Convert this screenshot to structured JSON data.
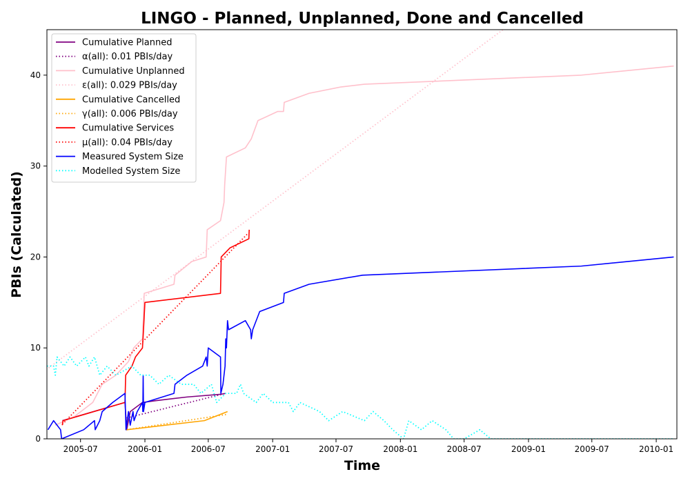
{
  "chart_data": {
    "type": "line",
    "title": "LINGO - Planned, Unplanned, Done  and Cancelled",
    "xlabel": "Time",
    "ylabel": "PBIs (Calculated)",
    "xlim": [
      "2005-03-27",
      "2010-03-01"
    ],
    "ylim": [
      0,
      45
    ],
    "x_ticks": [
      "2005-07",
      "2006-01",
      "2006-07",
      "2007-01",
      "2007-07",
      "2008-01",
      "2008-07",
      "2009-01",
      "2009-07",
      "2010-01"
    ],
    "y_ticks": [
      0,
      10,
      20,
      30,
      40
    ],
    "grid": false,
    "legend_position": "top-left",
    "series": [
      {
        "name": "Cumulative Planned",
        "color": "#800080",
        "style": "solid",
        "points": [
          [
            "2005-05-10",
            2
          ],
          [
            "2005-11-05",
            4
          ],
          [
            "2005-11-10",
            1
          ],
          [
            "2005-11-20",
            3
          ],
          [
            "2005-12-25",
            4
          ],
          [
            "2006-02-01",
            4.2
          ],
          [
            "2006-05-01",
            4.6
          ],
          [
            "2006-08-05",
            4.9
          ],
          [
            "2006-08-20",
            5
          ]
        ]
      },
      {
        "name": "α(all): 0.01 PBIs/day",
        "color": "#800080",
        "style": "dotted",
        "points": [
          [
            "2005-11-10",
            2.3
          ],
          [
            "2006-08-20",
            5
          ]
        ]
      },
      {
        "name": "Cumulative Unplanned",
        "color": "#ffc0cb",
        "style": "solid",
        "points": [
          [
            "2005-04-20",
            1.5
          ],
          [
            "2005-06-15",
            2.5
          ],
          [
            "2005-08-05",
            4
          ],
          [
            "2005-09-01",
            6
          ],
          [
            "2005-10-10",
            7
          ],
          [
            "2005-11-15",
            8.5
          ],
          [
            "2005-11-30",
            10
          ],
          [
            "2005-12-25",
            11
          ],
          [
            "2005-12-30",
            16
          ],
          [
            "2006-03-25",
            17
          ],
          [
            "2006-03-28",
            18
          ],
          [
            "2006-05-15",
            19.5
          ],
          [
            "2006-06-25",
            20
          ],
          [
            "2006-06-28",
            23
          ],
          [
            "2006-08-05",
            24
          ],
          [
            "2006-08-15",
            26
          ],
          [
            "2006-08-17",
            28
          ],
          [
            "2006-08-22",
            31
          ],
          [
            "2006-10-15",
            32
          ],
          [
            "2006-11-01",
            33
          ],
          [
            "2006-11-20",
            35
          ],
          [
            "2007-01-15",
            36
          ],
          [
            "2007-02-01",
            36
          ],
          [
            "2007-02-03",
            37
          ],
          [
            "2007-04-15",
            38
          ],
          [
            "2007-07-15",
            38.7
          ],
          [
            "2007-09-20",
            39
          ],
          [
            "2009-06-01",
            40
          ],
          [
            "2010-02-20",
            41
          ]
        ]
      },
      {
        "name": "ε(all): 0.029 PBIs/day",
        "color": "#ffc0cb",
        "style": "dotted",
        "points": [
          [
            "2005-04-01",
            7.8
          ],
          [
            "2008-10-20",
            45
          ]
        ]
      },
      {
        "name": "Cumulative Cancelled",
        "color": "#ffa500",
        "style": "solid",
        "points": [
          [
            "2005-11-10",
            1
          ],
          [
            "2006-06-20",
            2
          ],
          [
            "2006-08-25",
            3
          ]
        ]
      },
      {
        "name": "γ(all): 0.006 PBIs/day",
        "color": "#ffa500",
        "style": "dotted",
        "points": [
          [
            "2005-11-10",
            1
          ],
          [
            "2006-08-25",
            2.7
          ]
        ]
      },
      {
        "name": "Cumulative Services",
        "color": "#ff0000",
        "style": "solid",
        "points": [
          [
            "2005-05-10",
            1.5
          ],
          [
            "2005-05-12",
            2
          ],
          [
            "2005-11-05",
            4
          ],
          [
            "2005-11-07",
            7
          ],
          [
            "2005-11-25",
            8
          ],
          [
            "2005-12-05",
            9
          ],
          [
            "2005-12-25",
            10
          ],
          [
            "2005-12-28",
            12
          ],
          [
            "2006-01-01",
            15
          ],
          [
            "2006-08-05",
            16
          ],
          [
            "2006-08-07",
            20
          ],
          [
            "2006-09-01",
            21
          ],
          [
            "2006-10-25",
            22
          ],
          [
            "2006-10-26",
            23
          ]
        ]
      },
      {
        "name": "μ(all): 0.04 PBIs/day",
        "color": "#ff0000",
        "style": "dotted",
        "points": [
          [
            "2005-05-10",
            1.6
          ],
          [
            "2006-10-20",
            22.5
          ]
        ]
      },
      {
        "name": "Measured System Size",
        "color": "#0000ff",
        "style": "solid",
        "points": [
          [
            "2005-03-30",
            1
          ],
          [
            "2005-04-15",
            2
          ],
          [
            "2005-05-05",
            1
          ],
          [
            "2005-05-08",
            0
          ],
          [
            "2005-07-10",
            1
          ],
          [
            "2005-08-10",
            2
          ],
          [
            "2005-08-12",
            1
          ],
          [
            "2005-08-25",
            2
          ],
          [
            "2005-09-01",
            3
          ],
          [
            "2005-10-01",
            4
          ],
          [
            "2005-11-05",
            5
          ],
          [
            "2005-11-08",
            1
          ],
          [
            "2005-11-15",
            3
          ],
          [
            "2005-11-20",
            1.5
          ],
          [
            "2005-11-28",
            3
          ],
          [
            "2005-12-01",
            2
          ],
          [
            "2005-12-10",
            3
          ],
          [
            "2005-12-25",
            4
          ],
          [
            "2005-12-26",
            3
          ],
          [
            "2005-12-27",
            7
          ],
          [
            "2005-12-28",
            3
          ],
          [
            "2006-01-01",
            4
          ],
          [
            "2006-03-25",
            5
          ],
          [
            "2006-03-28",
            6
          ],
          [
            "2006-05-01",
            7
          ],
          [
            "2006-06-15",
            8
          ],
          [
            "2006-06-25",
            9
          ],
          [
            "2006-06-28",
            8
          ],
          [
            "2006-07-01",
            10
          ],
          [
            "2006-08-05",
            9
          ],
          [
            "2006-08-06",
            5
          ],
          [
            "2006-08-12",
            6
          ],
          [
            "2006-08-18",
            8
          ],
          [
            "2006-08-20",
            11
          ],
          [
            "2006-08-22",
            10
          ],
          [
            "2006-08-25",
            13
          ],
          [
            "2006-08-28",
            12
          ],
          [
            "2006-10-15",
            13
          ],
          [
            "2006-10-30",
            12
          ],
          [
            "2006-11-01",
            11
          ],
          [
            "2006-11-05",
            12
          ],
          [
            "2006-11-25",
            14
          ],
          [
            "2007-02-01",
            15
          ],
          [
            "2007-02-03",
            16
          ],
          [
            "2007-04-15",
            17
          ],
          [
            "2007-09-15",
            18
          ],
          [
            "2009-06-01",
            19
          ],
          [
            "2010-02-20",
            20
          ]
        ]
      },
      {
        "name": "Modelled System Size",
        "color": "#00ffff",
        "style": "dotted",
        "points": [
          [
            "2005-03-27",
            8
          ],
          [
            "2005-04-15",
            8
          ],
          [
            "2005-04-20",
            7
          ],
          [
            "2005-04-25",
            9
          ],
          [
            "2005-05-15",
            8
          ],
          [
            "2005-06-01",
            9
          ],
          [
            "2005-06-20",
            8
          ],
          [
            "2005-07-15",
            9
          ],
          [
            "2005-07-25",
            8
          ],
          [
            "2005-08-10",
            9
          ],
          [
            "2005-08-25",
            7
          ],
          [
            "2005-09-15",
            8
          ],
          [
            "2005-10-10",
            7
          ],
          [
            "2005-11-25",
            8
          ],
          [
            "2005-12-20",
            7
          ],
          [
            "2006-01-15",
            7
          ],
          [
            "2006-02-10",
            6
          ],
          [
            "2006-03-10",
            7
          ],
          [
            "2006-04-15",
            6
          ],
          [
            "2006-05-20",
            6
          ],
          [
            "2006-06-10",
            5
          ],
          [
            "2006-07-10",
            6
          ],
          [
            "2006-07-25",
            4
          ],
          [
            "2006-08-20",
            5
          ],
          [
            "2006-09-20",
            5
          ],
          [
            "2006-10-01",
            6
          ],
          [
            "2006-10-10",
            5
          ],
          [
            "2006-11-15",
            4
          ],
          [
            "2006-12-05",
            5
          ],
          [
            "2007-01-01",
            4
          ],
          [
            "2007-02-15",
            4
          ],
          [
            "2007-03-01",
            3
          ],
          [
            "2007-03-20",
            4
          ],
          [
            "2007-05-15",
            3
          ],
          [
            "2007-06-10",
            2
          ],
          [
            "2007-07-20",
            3
          ],
          [
            "2007-09-20",
            2
          ],
          [
            "2007-10-15",
            3
          ],
          [
            "2007-11-15",
            2
          ],
          [
            "2007-12-10",
            1
          ],
          [
            "2008-01-10",
            0
          ],
          [
            "2008-01-25",
            2
          ],
          [
            "2008-03-01",
            1
          ],
          [
            "2008-04-01",
            2
          ],
          [
            "2008-05-10",
            1
          ],
          [
            "2008-06-01",
            0
          ],
          [
            "2008-07-01",
            0
          ],
          [
            "2008-08-15",
            1
          ],
          [
            "2008-09-15",
            0
          ],
          [
            "2010-02-20",
            0
          ]
        ]
      }
    ]
  }
}
